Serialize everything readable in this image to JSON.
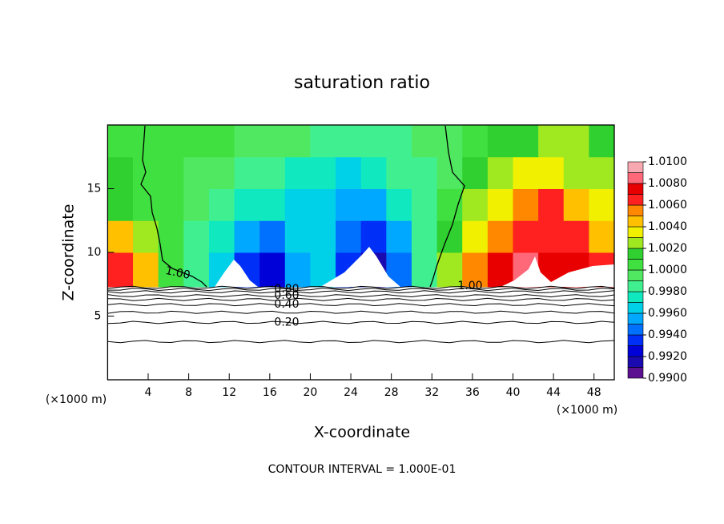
{
  "chart_data": {
    "type": "contour",
    "title": "saturation ratio",
    "x_label": "X-coordinate",
    "y_label": "Z-coordinate",
    "axis_unit": "(×1000 m)",
    "footer": "CONTOUR INTERVAL = 1.000E-01",
    "xlim": [
      0,
      50
    ],
    "ylim": [
      0,
      20
    ],
    "xticks": [
      4,
      8,
      12,
      16,
      20,
      24,
      28,
      32,
      36,
      40,
      44,
      48
    ],
    "yticks": [
      5,
      10,
      15
    ],
    "x_edges": [
      0,
      2.5,
      5,
      7.5,
      10,
      12.5,
      15,
      17.5,
      20,
      22.5,
      25,
      27.5,
      30,
      32.5,
      35,
      37.5,
      40,
      42.5,
      45,
      47.5,
      50
    ],
    "z_edges": [
      7.3,
      10,
      12.5,
      15,
      17.5,
      20
    ],
    "field": [
      [
        1.006,
        1.004,
        1.0,
        0.9985,
        0.9965,
        0.993,
        0.992,
        0.9955,
        0.996,
        0.9935,
        0.991,
        0.9945,
        0.998,
        1.002,
        1.005,
        1.007,
        1.008,
        1.0075,
        1.007,
        1.006
      ],
      [
        1.004,
        1.002,
        1.0,
        0.9985,
        0.997,
        0.9955,
        0.994,
        0.9962,
        0.9962,
        0.9945,
        0.993,
        0.9955,
        0.998,
        1.001,
        1.0035,
        1.005,
        1.0062,
        1.0068,
        1.006,
        1.0045
      ],
      [
        1.0015,
        1.0008,
        1.0,
        0.999,
        0.998,
        0.9975,
        0.997,
        0.9968,
        0.9962,
        0.9955,
        0.995,
        0.9972,
        0.9985,
        1.0005,
        1.002,
        1.0035,
        1.005,
        1.006,
        1.0045,
        1.003
      ],
      [
        1.001,
        1.0005,
        1.0,
        0.9995,
        0.999,
        0.9982,
        0.998,
        0.9976,
        0.997,
        0.9968,
        0.9972,
        0.998,
        0.9988,
        0.9998,
        1.0012,
        1.0025,
        1.0035,
        1.0035,
        1.0028,
        1.002
      ],
      [
        1.0008,
        1.0004,
        1.0002,
        1.0001,
        1.0,
        0.9995,
        0.9992,
        0.999,
        0.9988,
        0.9985,
        0.9984,
        0.9985,
        0.999,
        0.9995,
        1.0005,
        1.0012,
        1.0018,
        1.0022,
        1.002,
        1.0015
      ]
    ],
    "upper_contour_label": "1.00",
    "contour_lines": [
      {
        "level": 0.1,
        "z": 3.0
      },
      {
        "level": 0.2,
        "z": 4.5,
        "label": "0.20"
      },
      {
        "level": 0.3,
        "z": 5.3
      },
      {
        "level": 0.4,
        "z": 5.9,
        "label": "0.40"
      },
      {
        "level": 0.5,
        "z": 6.3
      },
      {
        "level": 0.6,
        "z": 6.6,
        "label": "0.60"
      },
      {
        "level": 0.7,
        "z": 6.9
      },
      {
        "level": 0.8,
        "z": 7.1,
        "label": "0.80"
      },
      {
        "level": 0.9,
        "z": 7.25
      }
    ],
    "colorbar": {
      "levels": [
        0.99,
        0.991,
        0.992,
        0.993,
        0.994,
        0.995,
        0.996,
        0.997,
        0.998,
        0.999,
        1.0,
        1.001,
        1.002,
        1.003,
        1.004,
        1.005,
        1.006,
        1.007,
        1.008,
        1.009,
        1.01
      ],
      "colors": [
        "#5a1090",
        "#1a0ab0",
        "#0000d8",
        "#0030f8",
        "#0070ff",
        "#00a8ff",
        "#00d0e8",
        "#10e8c0",
        "#40f090",
        "#50e860",
        "#40e040",
        "#30d030",
        "#a0e820",
        "#f0f000",
        "#ffc000",
        "#ff8800",
        "#ff2020",
        "#e80000",
        "#ff6878",
        "#f8a8b0"
      ],
      "ticks": [
        {
          "value": 0.99,
          "label": "0.9900"
        },
        {
          "value": 0.992,
          "label": "0.9920"
        },
        {
          "value": 0.994,
          "label": "0.9940"
        },
        {
          "value": 0.996,
          "label": "0.9960"
        },
        {
          "value": 0.998,
          "label": "0.9980"
        },
        {
          "value": 1.0,
          "label": "1.0000"
        },
        {
          "value": 1.002,
          "label": "1.0020"
        },
        {
          "value": 1.004,
          "label": "1.0040"
        },
        {
          "value": 1.006,
          "label": "1.0060"
        },
        {
          "value": 1.008,
          "label": "1.0080"
        },
        {
          "value": 1.01,
          "label": "1.0100"
        }
      ]
    }
  }
}
